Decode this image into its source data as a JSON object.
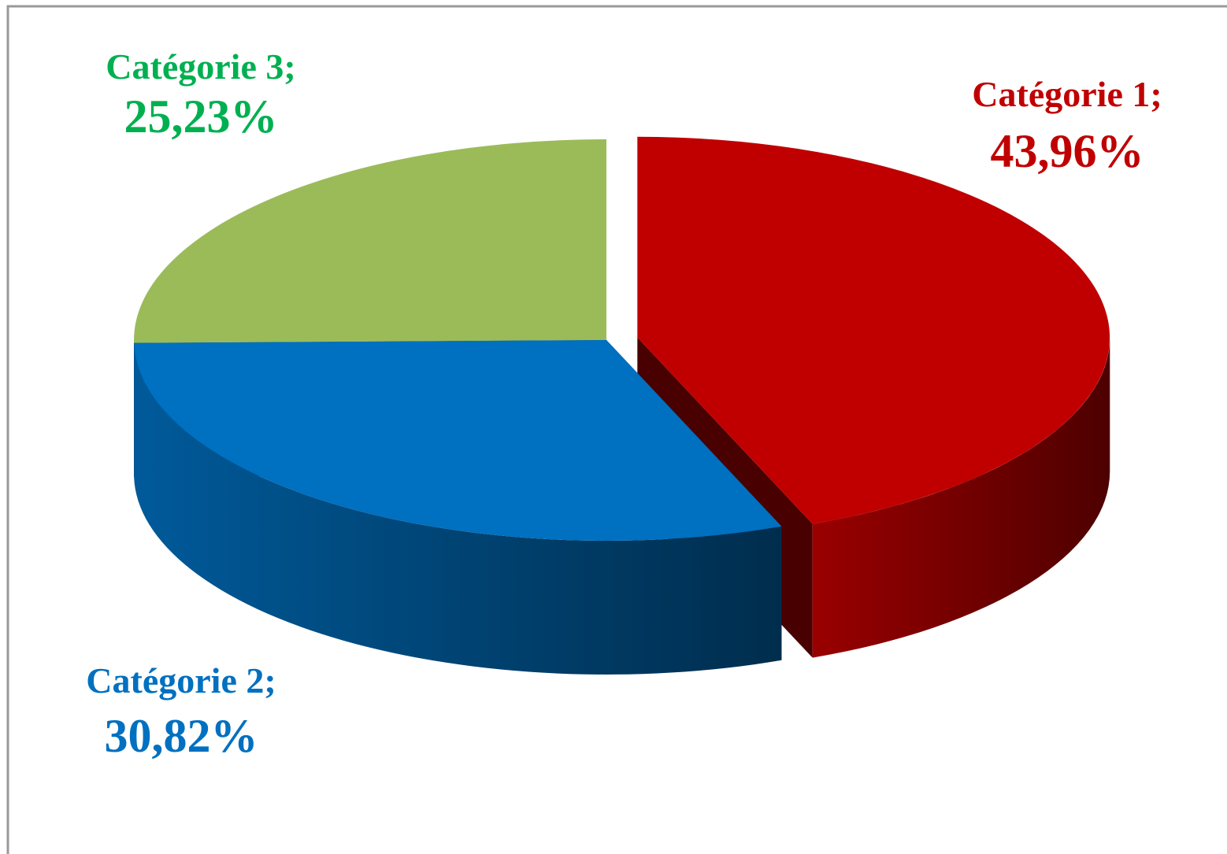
{
  "chart_data": {
    "type": "pie",
    "categories": [
      "Catégorie 1",
      "Catégorie 2",
      "Catégorie 3"
    ],
    "values": [
      43.96,
      30.82,
      25.23
    ],
    "value_labels": [
      "43,96%",
      "30,82%",
      "25,23%"
    ],
    "separator": ";",
    "colors": [
      "#c00000",
      "#0070c0",
      "#9bbb59"
    ],
    "label_colors": [
      "#c00000",
      "#0070c0",
      "#00b050"
    ],
    "start_angle": 0,
    "direction": "clockwise",
    "exploded": [
      true,
      false,
      false
    ]
  }
}
